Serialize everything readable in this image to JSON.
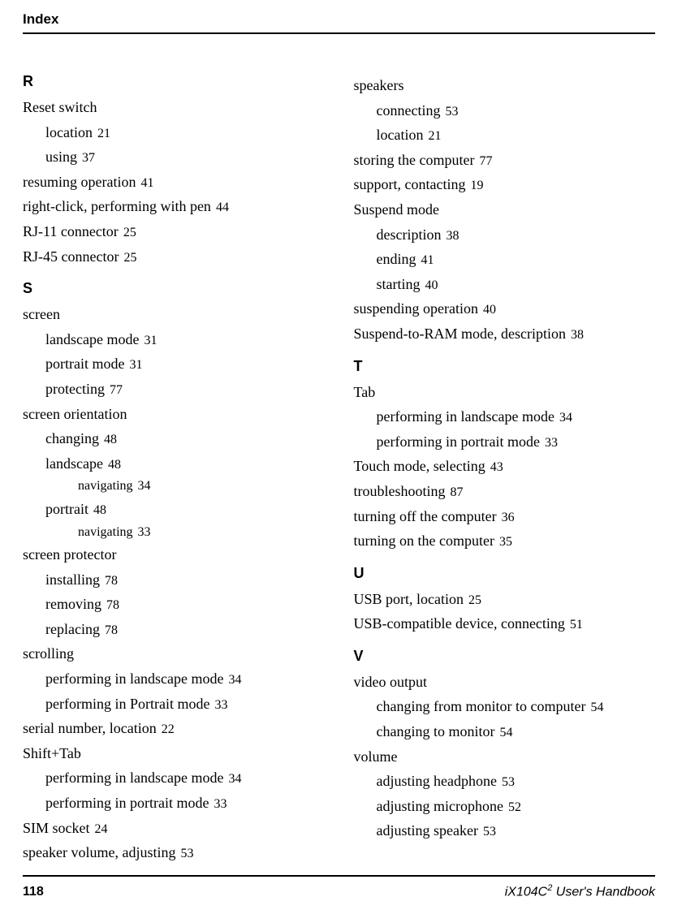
{
  "header": {
    "title": "Index"
  },
  "left": {
    "groups": [
      {
        "letter": "R",
        "entries": [
          {
            "level": 0,
            "text": "Reset switch",
            "page": ""
          },
          {
            "level": 1,
            "text": "location",
            "page": "21"
          },
          {
            "level": 1,
            "text": "using",
            "page": "37"
          },
          {
            "level": 0,
            "text": "resuming operation",
            "page": "41"
          },
          {
            "level": 0,
            "text": "right-click, performing with pen",
            "page": "44"
          },
          {
            "level": 0,
            "text": "RJ-11 connector",
            "page": "25"
          },
          {
            "level": 0,
            "text": "RJ-45 connector",
            "page": "25"
          }
        ]
      },
      {
        "letter": "S",
        "entries": [
          {
            "level": 0,
            "text": "screen",
            "page": ""
          },
          {
            "level": 1,
            "text": "landscape mode",
            "page": "31"
          },
          {
            "level": 1,
            "text": "portrait mode",
            "page": "31"
          },
          {
            "level": 1,
            "text": "protecting",
            "page": "77"
          },
          {
            "level": 0,
            "text": "screen orientation",
            "page": ""
          },
          {
            "level": 1,
            "text": "changing",
            "page": "48"
          },
          {
            "level": 1,
            "text": "landscape",
            "page": "48"
          },
          {
            "level": 2,
            "text": "navigating",
            "page": "34"
          },
          {
            "level": 1,
            "text": "portrait",
            "page": "48"
          },
          {
            "level": 2,
            "text": "navigating",
            "page": "33"
          },
          {
            "level": 0,
            "text": "screen protector",
            "page": ""
          },
          {
            "level": 1,
            "text": "installing",
            "page": "78"
          },
          {
            "level": 1,
            "text": "removing",
            "page": "78"
          },
          {
            "level": 1,
            "text": "replacing",
            "page": "78"
          },
          {
            "level": 0,
            "text": "scrolling",
            "page": ""
          },
          {
            "level": 1,
            "text": "performing in landscape mode",
            "page": "34"
          },
          {
            "level": 1,
            "text": "performing in Portrait mode",
            "page": "33"
          },
          {
            "level": 0,
            "text": "serial number, location",
            "page": "22"
          },
          {
            "level": 0,
            "text": "Shift+Tab",
            "page": ""
          },
          {
            "level": 1,
            "text": "performing in landscape mode",
            "page": "34"
          },
          {
            "level": 1,
            "text": "performing in portrait mode",
            "page": "33"
          },
          {
            "level": 0,
            "text": "SIM socket",
            "page": "24"
          },
          {
            "level": 0,
            "text": "speaker volume, adjusting",
            "page": "53"
          }
        ]
      }
    ]
  },
  "right": {
    "groups": [
      {
        "letter": "",
        "entries": [
          {
            "level": 0,
            "text": "speakers",
            "page": ""
          },
          {
            "level": 1,
            "text": "connecting",
            "page": "53"
          },
          {
            "level": 1,
            "text": "location",
            "page": "21"
          },
          {
            "level": 0,
            "text": "storing the computer",
            "page": "77"
          },
          {
            "level": 0,
            "text": "support, contacting",
            "page": "19"
          },
          {
            "level": 0,
            "text": "Suspend mode",
            "page": ""
          },
          {
            "level": 1,
            "text": "description",
            "page": "38"
          },
          {
            "level": 1,
            "text": "ending",
            "page": "41"
          },
          {
            "level": 1,
            "text": "starting",
            "page": "40"
          },
          {
            "level": 0,
            "text": "suspending operation",
            "page": "40"
          },
          {
            "level": 0,
            "text": "Suspend-to-RAM mode, description",
            "page": "38"
          }
        ]
      },
      {
        "letter": "T",
        "entries": [
          {
            "level": 0,
            "text": "Tab",
            "page": ""
          },
          {
            "level": 1,
            "text": "performing in landscape mode",
            "page": "34"
          },
          {
            "level": 1,
            "text": "performing in portrait mode",
            "page": "33"
          },
          {
            "level": 0,
            "text": "Touch mode, selecting",
            "page": "43"
          },
          {
            "level": 0,
            "text": "troubleshooting",
            "page": "87"
          },
          {
            "level": 0,
            "text": "turning off the computer",
            "page": "36"
          },
          {
            "level": 0,
            "text": "turning on the computer",
            "page": "35"
          }
        ]
      },
      {
        "letter": "U",
        "entries": [
          {
            "level": 0,
            "text": "USB port, location",
            "page": "25"
          },
          {
            "level": 0,
            "text": "USB-compatible device, connecting",
            "page": "51"
          }
        ]
      },
      {
        "letter": "V",
        "entries": [
          {
            "level": 0,
            "text": "video output",
            "page": ""
          },
          {
            "level": 1,
            "text": "changing from monitor to computer",
            "page": "54"
          },
          {
            "level": 1,
            "text": "changing to monitor",
            "page": "54"
          },
          {
            "level": 0,
            "text": "volume",
            "page": ""
          },
          {
            "level": 1,
            "text": "adjusting headphone",
            "page": "53"
          },
          {
            "level": 1,
            "text": "adjusting microphone",
            "page": "52"
          },
          {
            "level": 1,
            "text": "adjusting speaker",
            "page": "53"
          }
        ]
      }
    ]
  },
  "footer": {
    "page_number": "118",
    "text_prefix": "iX104C",
    "text_sup": "2",
    "text_suffix": " User's Handbook"
  }
}
